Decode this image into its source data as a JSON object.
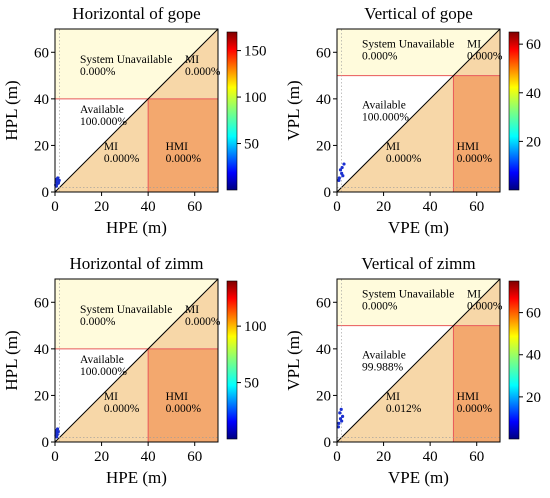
{
  "colors": {
    "system_unavailable": "#fffbdc",
    "mi": "#f7d7a8",
    "hmi": "#f3a86e",
    "alert_limit_line": "#e8585a",
    "diagonal": "#000000"
  },
  "chart_data": [
    {
      "type": "stanford",
      "title": "Horizontal of gope",
      "xlabel": "HPE (m)",
      "ylabel": "HPL (m)",
      "xlim": [
        0,
        70
      ],
      "ylim": [
        0,
        70
      ],
      "xticks": [
        "0",
        "20",
        "40",
        "60"
      ],
      "yticks": [
        "0",
        "20",
        "40",
        "60"
      ],
      "alert_limit": 40,
      "regions": {
        "system_unavailable": {
          "label": "System Unavailable",
          "value": "0.000%"
        },
        "mi_upper": {
          "label": "MI",
          "value": "0.000%"
        },
        "available": {
          "label": "Available",
          "value": "100.000%"
        },
        "mi_lower": {
          "label": "MI",
          "value": "0.000%"
        },
        "hmi": {
          "label": "HMI",
          "value": "0.000%"
        }
      },
      "colorbar": {
        "min": 0,
        "max": 170,
        "ticks": [
          "50",
          "100",
          "150"
        ],
        "tick_values": [
          50,
          100,
          150
        ]
      },
      "points": [
        [
          0.5,
          4.5
        ],
        [
          1.0,
          3.5
        ],
        [
          0.8,
          5.5
        ],
        [
          1.5,
          4.0
        ],
        [
          0.3,
          3.0
        ],
        [
          1.2,
          6.0
        ],
        [
          0.6,
          2.5
        ],
        [
          1.8,
          5.0
        ]
      ]
    },
    {
      "type": "stanford",
      "title": "Vertical of gope",
      "xlabel": "VPE (m)",
      "ylabel": "VPL (m)",
      "xlim": [
        0,
        70
      ],
      "ylim": [
        0,
        70
      ],
      "xticks": [
        "0",
        "20",
        "40",
        "60"
      ],
      "yticks": [
        "0",
        "20",
        "40",
        "60"
      ],
      "alert_limit": 50,
      "regions": {
        "system_unavailable": {
          "label": "System Unavailable",
          "value": "0.000%"
        },
        "mi_upper": {
          "label": "MI",
          "value": "0.000%"
        },
        "available": {
          "label": "Available",
          "value": "100.000%"
        },
        "mi_lower": {
          "label": "MI",
          "value": "0.000%"
        },
        "hmi": {
          "label": "HMI",
          "value": "0.000%"
        }
      },
      "colorbar": {
        "min": 0,
        "max": 65,
        "ticks": [
          "20",
          "40",
          "60"
        ],
        "tick_values": [
          20,
          40,
          60
        ]
      },
      "points": [
        [
          1.0,
          6.0
        ],
        [
          2.0,
          8.0
        ],
        [
          1.5,
          9.5
        ],
        [
          2.5,
          7.0
        ],
        [
          3.0,
          12.0
        ],
        [
          0.8,
          5.0
        ],
        [
          2.2,
          10.5
        ]
      ]
    },
    {
      "type": "stanford",
      "title": "Horizontal of zimm",
      "xlabel": "HPE (m)",
      "ylabel": "HPL (m)",
      "xlim": [
        0,
        70
      ],
      "ylim": [
        0,
        70
      ],
      "xticks": [
        "0",
        "20",
        "40",
        "60"
      ],
      "yticks": [
        "0",
        "20",
        "40",
        "60"
      ],
      "alert_limit": 40,
      "regions": {
        "system_unavailable": {
          "label": "System Unavailable",
          "value": "0.000%"
        },
        "mi_upper": {
          "label": "MI",
          "value": "0.000%"
        },
        "available": {
          "label": "Available",
          "value": "100.000%"
        },
        "mi_lower": {
          "label": "MI",
          "value": "0.000%"
        },
        "hmi": {
          "label": "HMI",
          "value": "0.000%"
        }
      },
      "colorbar": {
        "min": 0,
        "max": 140,
        "ticks": [
          "50",
          "100"
        ],
        "tick_values": [
          50,
          100
        ]
      },
      "points": [
        [
          0.5,
          4.0
        ],
        [
          1.0,
          3.2
        ],
        [
          0.8,
          5.0
        ],
        [
          1.4,
          4.4
        ],
        [
          0.4,
          2.8
        ],
        [
          1.1,
          5.6
        ],
        [
          0.7,
          2.2
        ]
      ]
    },
    {
      "type": "stanford",
      "title": "Vertical of zimm",
      "xlabel": "VPE (m)",
      "ylabel": "VPL (m)",
      "xlim": [
        0,
        70
      ],
      "ylim": [
        0,
        70
      ],
      "xticks": [
        "0",
        "20",
        "40",
        "60"
      ],
      "yticks": [
        "0",
        "20",
        "40",
        "60"
      ],
      "alert_limit": 50,
      "regions": {
        "system_unavailable": {
          "label": "System Unavailable",
          "value": "0.000%"
        },
        "mi_upper": {
          "label": "MI",
          "value": "0.000%"
        },
        "available": {
          "label": "Available",
          "value": "99.988%"
        },
        "mi_lower": {
          "label": "MI",
          "value": "0.012%"
        },
        "hmi": {
          "label": "HMI",
          "value": "0.000%"
        }
      },
      "colorbar": {
        "min": 0,
        "max": 75,
        "ticks": [
          "20",
          "40",
          "60"
        ],
        "tick_values": [
          20,
          40,
          60
        ]
      },
      "points": [
        [
          0.8,
          8.0
        ],
        [
          1.5,
          10.0
        ],
        [
          1.2,
          12.5
        ],
        [
          2.0,
          9.0
        ],
        [
          0.6,
          6.5
        ],
        [
          1.8,
          14.0
        ],
        [
          2.4,
          11.0
        ]
      ]
    }
  ]
}
